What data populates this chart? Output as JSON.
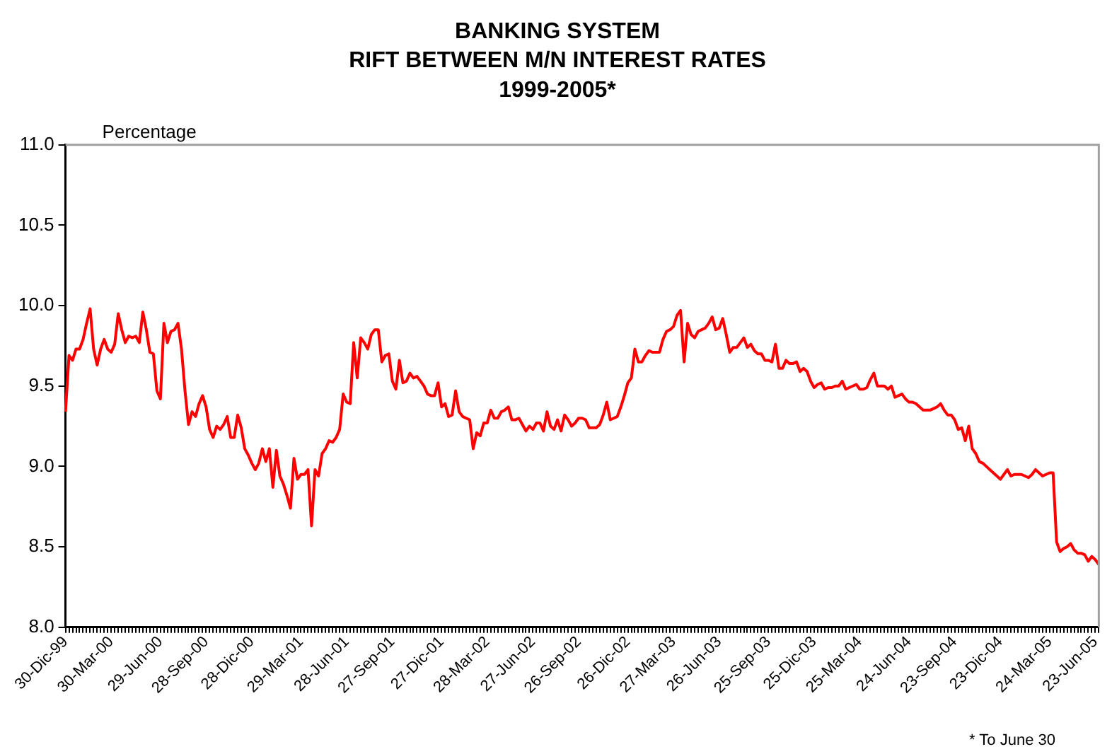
{
  "chart_data": {
    "type": "line",
    "title": "BANKING SYSTEM\nRIFT BETWEEN M/N INTEREST RATES\n1999-2005*",
    "ylabel": "Percentage",
    "annotations": [
      "* To June 30"
    ],
    "categories": [
      "30-Dic-99",
      null,
      null,
      null,
      null,
      null,
      null,
      null,
      null,
      null,
      null,
      null,
      null,
      "30-Mar-00",
      null,
      null,
      null,
      null,
      null,
      null,
      null,
      null,
      null,
      null,
      null,
      null,
      null,
      "29-Jun-00",
      null,
      null,
      null,
      null,
      null,
      null,
      null,
      null,
      null,
      null,
      null,
      null,
      "28-Sep-00",
      null,
      null,
      null,
      null,
      null,
      null,
      null,
      null,
      null,
      null,
      null,
      null,
      "28-Dic-00",
      null,
      null,
      null,
      null,
      null,
      null,
      null,
      null,
      null,
      null,
      null,
      null,
      null,
      "29-Mar-01",
      null,
      null,
      null,
      null,
      null,
      null,
      null,
      null,
      null,
      null,
      null,
      null,
      "28-Jun-01",
      null,
      null,
      null,
      null,
      null,
      null,
      null,
      null,
      null,
      null,
      null,
      null,
      "27-Sep-01",
      null,
      null,
      null,
      null,
      null,
      null,
      null,
      null,
      null,
      null,
      null,
      null,
      null,
      "27-Dic-01",
      null,
      null,
      null,
      null,
      null,
      null,
      null,
      null,
      null,
      null,
      null,
      null,
      "28-Mar-02",
      null,
      null,
      null,
      null,
      null,
      null,
      null,
      null,
      null,
      null,
      null,
      null,
      "27-Jun-02",
      null,
      null,
      null,
      null,
      null,
      null,
      null,
      null,
      null,
      null,
      null,
      null,
      "26-Sep-02",
      null,
      null,
      null,
      null,
      null,
      null,
      null,
      null,
      null,
      null,
      null,
      null,
      null,
      "26-Dic-02",
      null,
      null,
      null,
      null,
      null,
      null,
      null,
      null,
      null,
      null,
      null,
      null,
      "27-Mar-03",
      null,
      null,
      null,
      null,
      null,
      null,
      null,
      null,
      null,
      null,
      null,
      null,
      "26-Jun-03",
      null,
      null,
      null,
      null,
      null,
      null,
      null,
      null,
      null,
      null,
      null,
      null,
      null,
      "25-Sep-03",
      null,
      null,
      null,
      null,
      null,
      null,
      null,
      null,
      null,
      null,
      null,
      null,
      "25-Dic-03",
      null,
      null,
      null,
      null,
      null,
      null,
      null,
      null,
      null,
      null,
      null,
      null,
      "25-Mar-04",
      null,
      null,
      null,
      null,
      null,
      null,
      null,
      null,
      null,
      null,
      null,
      null,
      null,
      "24-Jun-04",
      null,
      null,
      null,
      null,
      null,
      null,
      null,
      null,
      null,
      null,
      null,
      null,
      "23-Sep-04",
      null,
      null,
      null,
      null,
      null,
      null,
      null,
      null,
      null,
      null,
      null,
      null,
      "23-Dic-04",
      null,
      null,
      null,
      null,
      null,
      null,
      null,
      null,
      null,
      null,
      null,
      null,
      null,
      "24-Mar-05",
      null,
      null,
      null,
      null,
      null,
      null,
      null,
      null,
      null,
      null,
      null,
      null,
      "23-Jun-05",
      null
    ],
    "series": [
      {
        "color": "#ff0000",
        "values": [
          9.34,
          9.69,
          9.66,
          9.73,
          9.73,
          9.79,
          9.89,
          9.98,
          9.73,
          9.63,
          9.73,
          9.79,
          9.73,
          9.71,
          9.76,
          9.95,
          9.85,
          9.77,
          9.81,
          9.8,
          9.81,
          9.77,
          9.96,
          9.85,
          9.71,
          9.7,
          9.47,
          9.42,
          9.89,
          9.77,
          9.84,
          9.85,
          9.89,
          9.73,
          9.47,
          9.26,
          9.34,
          9.31,
          9.39,
          9.44,
          9.37,
          9.23,
          9.18,
          9.25,
          9.23,
          9.26,
          9.31,
          9.18,
          9.18,
          9.32,
          9.24,
          9.11,
          9.07,
          9.02,
          8.98,
          9.02,
          9.11,
          9.03,
          9.11,
          8.87,
          9.1,
          8.94,
          8.89,
          8.82,
          8.74,
          9.05,
          8.92,
          8.95,
          8.95,
          8.98,
          8.63,
          8.98,
          8.94,
          9.08,
          9.11,
          9.16,
          9.15,
          9.18,
          9.23,
          9.45,
          9.4,
          9.39,
          9.77,
          9.55,
          9.8,
          9.77,
          9.73,
          9.82,
          9.85,
          9.85,
          9.65,
          9.69,
          9.7,
          9.53,
          9.48,
          9.66,
          9.52,
          9.53,
          9.58,
          9.55,
          9.56,
          9.53,
          9.5,
          9.45,
          9.44,
          9.44,
          9.52,
          9.37,
          9.39,
          9.31,
          9.32,
          9.47,
          9.34,
          9.31,
          9.3,
          9.29,
          9.11,
          9.21,
          9.19,
          9.27,
          9.27,
          9.35,
          9.3,
          9.3,
          9.34,
          9.35,
          9.37,
          9.29,
          9.29,
          9.3,
          9.26,
          9.22,
          9.25,
          9.23,
          9.27,
          9.27,
          9.22,
          9.34,
          9.25,
          9.23,
          9.29,
          9.22,
          9.32,
          9.29,
          9.25,
          9.27,
          9.3,
          9.3,
          9.29,
          9.24,
          9.24,
          9.24,
          9.26,
          9.32,
          9.4,
          9.29,
          9.3,
          9.31,
          9.37,
          9.44,
          9.52,
          9.55,
          9.73,
          9.65,
          9.65,
          9.69,
          9.72,
          9.71,
          9.71,
          9.71,
          9.79,
          9.84,
          9.85,
          9.87,
          9.94,
          9.97,
          9.65,
          9.89,
          9.82,
          9.8,
          9.84,
          9.85,
          9.86,
          9.89,
          9.93,
          9.85,
          9.86,
          9.92,
          9.82,
          9.71,
          9.74,
          9.74,
          9.77,
          9.8,
          9.74,
          9.76,
          9.72,
          9.7,
          9.7,
          9.66,
          9.66,
          9.65,
          9.76,
          9.61,
          9.61,
          9.66,
          9.64,
          9.64,
          9.65,
          9.59,
          9.61,
          9.59,
          9.53,
          9.49,
          9.51,
          9.52,
          9.48,
          9.49,
          9.49,
          9.5,
          9.5,
          9.53,
          9.48,
          9.49,
          9.5,
          9.51,
          9.48,
          9.48,
          9.49,
          9.54,
          9.58,
          9.5,
          9.5,
          9.5,
          9.48,
          9.5,
          9.43,
          9.44,
          9.45,
          9.42,
          9.4,
          9.4,
          9.39,
          9.37,
          9.35,
          9.35,
          9.35,
          9.36,
          9.37,
          9.39,
          9.35,
          9.32,
          9.32,
          9.29,
          9.23,
          9.24,
          9.16,
          9.25,
          9.11,
          9.08,
          9.03,
          9.02,
          9.0,
          8.98,
          8.96,
          8.94,
          8.92,
          8.95,
          8.98,
          8.94,
          8.95,
          8.95,
          8.95,
          8.94,
          8.93,
          8.95,
          8.98,
          8.96,
          8.94,
          8.95,
          8.96,
          8.96,
          8.53,
          8.47,
          8.49,
          8.5,
          8.52,
          8.48,
          8.46,
          8.46,
          8.45,
          8.41,
          8.44,
          8.42,
          8.39
        ]
      }
    ],
    "ylim": [
      8,
      11
    ],
    "yticks": [
      {
        "value": 8,
        "label": "8.0"
      },
      {
        "value": 8.5,
        "label": "8.5"
      },
      {
        "value": 9,
        "label": "9.0"
      },
      {
        "value": 9.5,
        "label": "9.5"
      },
      {
        "value": 10,
        "label": "10.0"
      },
      {
        "value": 10.5,
        "label": "10.5"
      },
      {
        "value": 11,
        "label": "11.0"
      }
    ],
    "grid": false,
    "legend": false,
    "marker": "none",
    "line_style": "solid"
  }
}
